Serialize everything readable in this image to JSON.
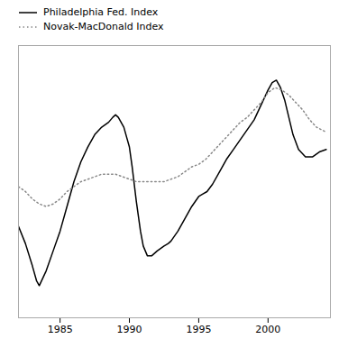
{
  "chart_data": {
    "type": "line",
    "xlim": [
      1982.0,
      2004.5
    ],
    "ylim": [
      -0.05,
      1.05
    ],
    "xticks": [
      1985,
      1990,
      1995,
      2000
    ],
    "tick_labels": "x",
    "grid": false,
    "legend": "upper left",
    "series": [
      {
        "name": "Philadelphia Fed. Index",
        "color": "#000000",
        "line_style": "solid",
        "x": [
          1982.0,
          1982.5,
          1983.0,
          1983.3,
          1983.5,
          1984.0,
          1984.5,
          1985.0,
          1985.5,
          1986.0,
          1986.5,
          1987.0,
          1987.5,
          1988.0,
          1988.5,
          1988.8,
          1989.0,
          1989.2,
          1989.4,
          1989.6,
          1989.8,
          1990.0,
          1990.2,
          1990.5,
          1990.8,
          1991.0,
          1991.3,
          1991.6,
          1992.0,
          1992.5,
          1992.8,
          1993.0,
          1993.5,
          1994.0,
          1994.5,
          1995.0,
          1995.3,
          1995.6,
          1996.0,
          1996.5,
          1997.0,
          1997.5,
          1998.0,
          1998.5,
          1999.0,
          1999.5,
          2000.0,
          2000.3,
          2000.6,
          2000.9,
          2001.2,
          2001.5,
          2001.8,
          2002.2,
          2002.7,
          2003.2,
          2003.7,
          2004.2
        ],
        "values": [
          0.32,
          0.25,
          0.16,
          0.1,
          0.08,
          0.14,
          0.22,
          0.3,
          0.4,
          0.5,
          0.58,
          0.64,
          0.69,
          0.72,
          0.74,
          0.76,
          0.77,
          0.76,
          0.74,
          0.72,
          0.68,
          0.64,
          0.56,
          0.42,
          0.3,
          0.24,
          0.2,
          0.2,
          0.22,
          0.24,
          0.25,
          0.26,
          0.3,
          0.35,
          0.4,
          0.44,
          0.45,
          0.46,
          0.49,
          0.54,
          0.59,
          0.63,
          0.67,
          0.71,
          0.75,
          0.81,
          0.87,
          0.9,
          0.91,
          0.88,
          0.83,
          0.76,
          0.69,
          0.63,
          0.6,
          0.6,
          0.62,
          0.63
        ]
      },
      {
        "name": "Novak-MacDonald Index",
        "color": "#888888",
        "line_style": "dotted",
        "x": [
          1982.0,
          1982.5,
          1983.0,
          1983.5,
          1984.0,
          1984.5,
          1985.0,
          1985.5,
          1986.0,
          1986.5,
          1987.0,
          1987.5,
          1988.0,
          1988.5,
          1989.0,
          1989.5,
          1990.0,
          1990.5,
          1991.0,
          1991.5,
          1992.0,
          1992.5,
          1993.0,
          1993.5,
          1994.0,
          1994.5,
          1995.0,
          1995.5,
          1996.0,
          1996.5,
          1997.0,
          1997.5,
          1998.0,
          1998.5,
          1999.0,
          1999.5,
          2000.0,
          2000.5,
          2001.0,
          2001.5,
          2002.0,
          2002.5,
          2003.0,
          2003.5,
          2004.2
        ],
        "values": [
          0.48,
          0.46,
          0.43,
          0.41,
          0.4,
          0.41,
          0.43,
          0.46,
          0.48,
          0.5,
          0.51,
          0.52,
          0.53,
          0.53,
          0.53,
          0.52,
          0.51,
          0.5,
          0.5,
          0.5,
          0.5,
          0.5,
          0.51,
          0.52,
          0.54,
          0.56,
          0.57,
          0.59,
          0.62,
          0.65,
          0.68,
          0.71,
          0.74,
          0.76,
          0.79,
          0.82,
          0.86,
          0.88,
          0.87,
          0.85,
          0.82,
          0.79,
          0.75,
          0.72,
          0.7
        ]
      }
    ]
  }
}
